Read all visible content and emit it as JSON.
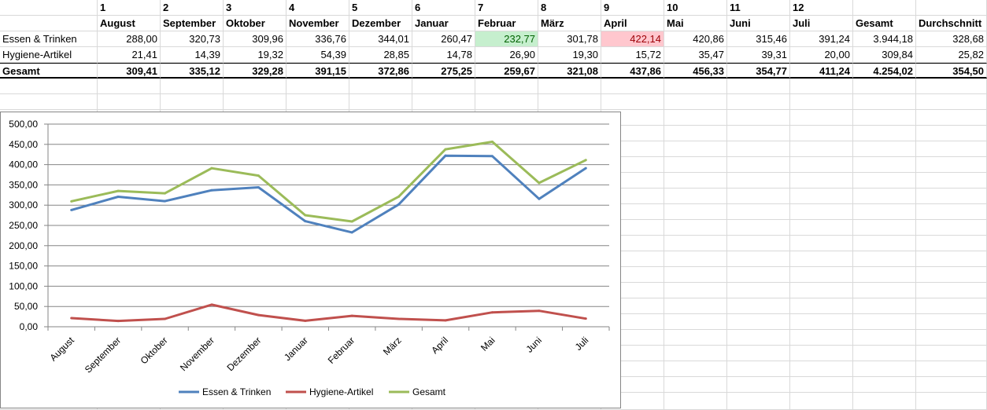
{
  "sheet": {
    "header_numbers": [
      "1",
      "2",
      "3",
      "4",
      "5",
      "6",
      "7",
      "8",
      "9",
      "10",
      "11",
      "12"
    ],
    "columns": [
      "August",
      "September",
      "Oktober",
      "November",
      "Dezember",
      "Januar",
      "Februar",
      "März",
      "April",
      "Mai",
      "Juni",
      "Juli",
      "Gesamt",
      "Durchschnitt"
    ],
    "rows": [
      {
        "label": "Essen & Trinken",
        "values": [
          "288,00",
          "320,73",
          "309,96",
          "336,76",
          "344,01",
          "260,47",
          "232,77",
          "301,78",
          "422,14",
          "420,86",
          "315,46",
          "391,24",
          "3.944,18",
          "328,68"
        ]
      },
      {
        "label": "Hygiene-Artikel",
        "values": [
          "21,41",
          "14,39",
          "19,32",
          "54,39",
          "28,85",
          "14,78",
          "26,90",
          "19,30",
          "15,72",
          "35,47",
          "39,31",
          "20,00",
          "309,84",
          "25,82"
        ]
      },
      {
        "label": "Gesamt",
        "values": [
          "309,41",
          "335,12",
          "329,28",
          "391,15",
          "372,86",
          "275,25",
          "259,67",
          "321,08",
          "437,86",
          "456,33",
          "354,77",
          "411,24",
          "4.254,02",
          "354,50"
        ]
      }
    ],
    "highlight_min_color": "#c6efce",
    "highlight_max_color": "#ffc7ce"
  },
  "chart_data": {
    "type": "line",
    "categories": [
      "August",
      "September",
      "Oktober",
      "November",
      "Dezember",
      "Januar",
      "Februar",
      "März",
      "April",
      "Mai",
      "Juni",
      "Juli"
    ],
    "series": [
      {
        "name": "Essen & Trinken",
        "color": "#4f81bd",
        "values": [
          288.0,
          320.73,
          309.96,
          336.76,
          344.01,
          260.47,
          232.77,
          301.78,
          422.14,
          420.86,
          315.46,
          391.24
        ]
      },
      {
        "name": "Hygiene-Artikel",
        "color": "#c0504d",
        "values": [
          21.41,
          14.39,
          19.32,
          54.39,
          28.85,
          14.78,
          26.9,
          19.3,
          15.72,
          35.47,
          39.31,
          20.0
        ]
      },
      {
        "name": "Gesamt",
        "color": "#9bbb59",
        "values": [
          309.41,
          335.12,
          329.28,
          391.15,
          372.86,
          275.25,
          259.67,
          321.08,
          437.86,
          456.33,
          354.77,
          411.24
        ]
      }
    ],
    "y_ticks": [
      "0,00",
      "50,00",
      "100,00",
      "150,00",
      "200,00",
      "250,00",
      "300,00",
      "350,00",
      "400,00",
      "450,00",
      "500,00"
    ],
    "ylim": [
      0,
      500
    ],
    "grid": true,
    "legend": "bottom"
  }
}
